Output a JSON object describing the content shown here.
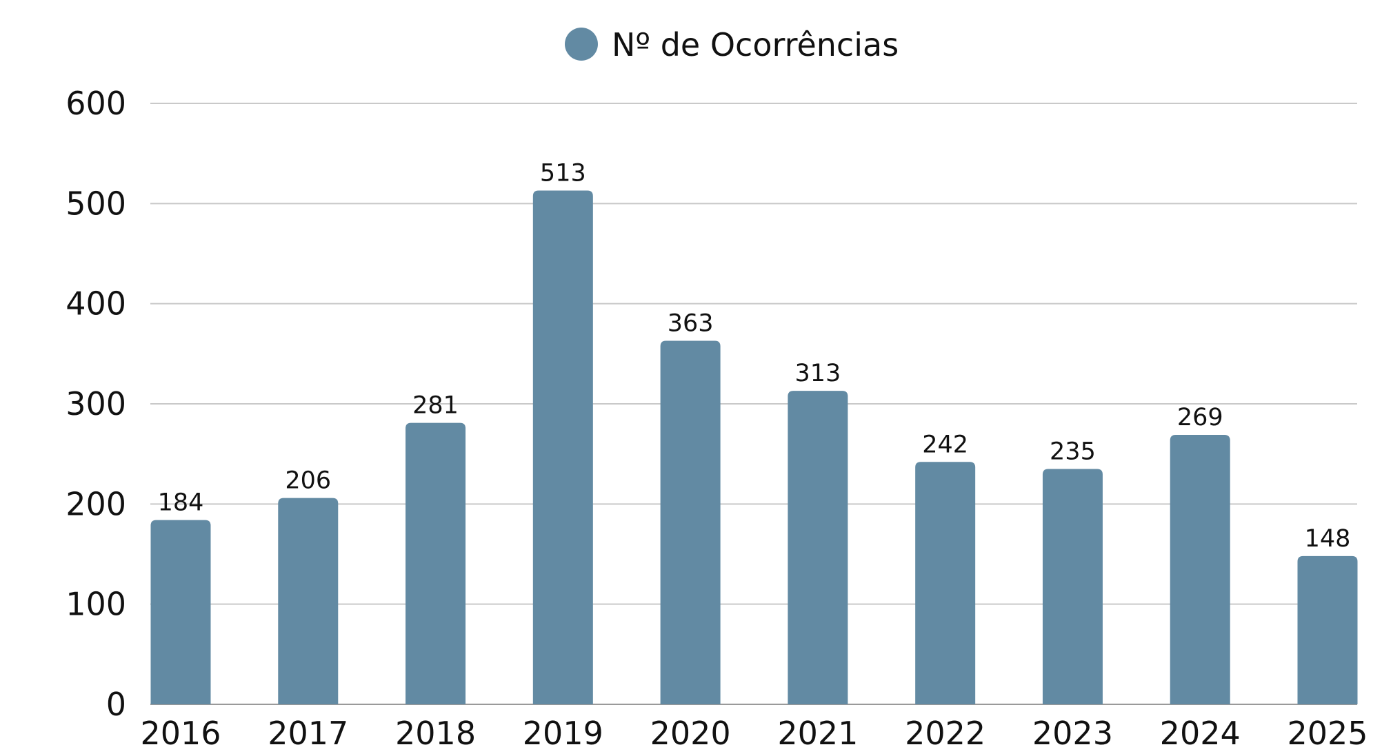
{
  "chart_data": {
    "type": "bar",
    "title": "",
    "xlabel": "",
    "ylabel": "",
    "categories": [
      "2016",
      "2017",
      "2018",
      "2019",
      "2020",
      "2021",
      "2022",
      "2023",
      "2024",
      "2025"
    ],
    "series": [
      {
        "name": "Nº de Ocorrências",
        "values": [
          184,
          206,
          281,
          513,
          363,
          313,
          242,
          235,
          269,
          148
        ],
        "color": "#628aa3"
      }
    ],
    "ylim": [
      0,
      600
    ],
    "yticks": [
      0,
      100,
      200,
      300,
      400,
      500,
      600
    ],
    "grid": true,
    "legend_position": "top-center",
    "data_labels": true
  }
}
